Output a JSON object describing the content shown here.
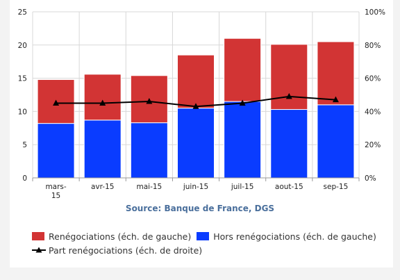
{
  "chart_data": {
    "type": "bar",
    "stacked": true,
    "categories": [
      "mars-15",
      "avr-15",
      "mai-15",
      "juin-15",
      "juil-15",
      "aout-15",
      "sep-15"
    ],
    "category_label_lines": [
      [
        "mars-",
        "15"
      ],
      [
        "avr-15"
      ],
      [
        "mai-15"
      ],
      [
        "juin-15"
      ],
      [
        "juil-15"
      ],
      [
        "aout-15"
      ],
      [
        "sep-15"
      ]
    ],
    "series": [
      {
        "name": "Hors renégociations (éch. de gauche)",
        "axis": "left",
        "color": "#0a3cff",
        "values": [
          8.2,
          8.7,
          8.3,
          10.5,
          11.5,
          10.3,
          11.0
        ]
      },
      {
        "name": "Renégociations (éch. de gauche)",
        "axis": "left",
        "color": "#d23434",
        "values": [
          6.6,
          6.9,
          7.1,
          8.0,
          9.5,
          9.8,
          9.5
        ]
      },
      {
        "name": "Part renégociations (éch. de droite)",
        "axis": "right",
        "type": "line",
        "color": "#000000",
        "values": [
          45,
          45,
          46,
          43,
          45,
          49,
          47
        ]
      }
    ],
    "y_left": {
      "min": 0,
      "max": 25,
      "ticks": [
        "0",
        "5",
        "10",
        "15",
        "20",
        "25"
      ]
    },
    "y_right": {
      "min": 0,
      "max": 100,
      "ticks": [
        "0%",
        "20%",
        "40%",
        "60%",
        "80%",
        "100%"
      ]
    },
    "grid": true,
    "legend_position": "bottom",
    "source": "Source: Banque de France, DGS"
  },
  "legend": {
    "reneg": "Renégociations (éch. de gauche)",
    "hors": "Hors renégociations (éch. de gauche)",
    "part": "Part renégociations (éch. de droite)"
  }
}
